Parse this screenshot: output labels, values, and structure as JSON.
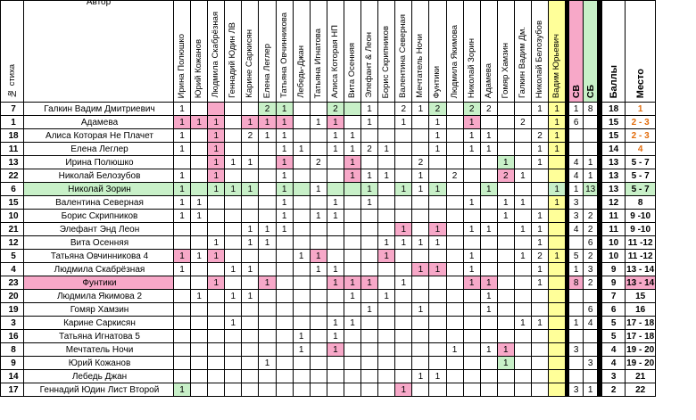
{
  "header": {
    "num_label": "№ стиха",
    "author_label": "Автор",
    "juries": [
      "Ирина Полюшко",
      "Юрий Кожанов",
      "Людмила Скабрёзная",
      "Геннадий Юдин ЛВ",
      "Карине Саркисян",
      "Елена Леглер",
      "Татьяна Овчинникова",
      "Лебедь-Джан",
      "Татьяна Игнатова",
      "Алиса Которая НП",
      "Вита Осенняя",
      "Элефант & Леон",
      "Борис Скрипников",
      "Валентина Северная",
      "Мечтатель Ночи",
      "Фунтики",
      "Людмила Якимова",
      "Николай Зорин",
      "Адамева",
      "Гомяр Хамзин",
      "Галкин Вадим Дм.",
      "Николай Белозубов",
      "Вадим Юрьевич"
    ],
    "sv_label": "СВ",
    "sb_label": "СБ",
    "sum_label": "Баллы",
    "place_label": "Место"
  },
  "rows": [
    {
      "num": "7",
      "author": "Галкин Вадим Дмитриевич",
      "votes": [
        "1",
        "",
        "",
        "",
        "",
        "2",
        "1",
        "",
        "",
        "2",
        "",
        "1",
        "",
        "2",
        "1",
        "2",
        "",
        "2",
        "2",
        "",
        "",
        "1",
        "1"
      ],
      "hl": [
        0,
        0,
        1,
        0,
        0,
        2,
        2,
        0,
        0,
        2,
        2,
        0,
        0,
        0,
        0,
        2,
        0,
        2,
        0,
        0,
        0,
        0,
        0
      ],
      "sv": "1",
      "sb": "8",
      "sum": "18",
      "place": "1",
      "orange": true
    },
    {
      "num": "1",
      "author": "Адамева",
      "votes": [
        "1",
        "1",
        "1",
        "",
        "1",
        "1",
        "1",
        "",
        "1",
        "1",
        "",
        "1",
        "",
        "1",
        "",
        "1",
        "",
        "1",
        "",
        "",
        "2",
        "",
        "1"
      ],
      "hl": [
        1,
        1,
        1,
        0,
        1,
        1,
        1,
        0,
        0,
        1,
        0,
        0,
        0,
        0,
        0,
        0,
        0,
        1,
        0,
        0,
        0,
        0,
        0
      ],
      "sv": "6",
      "sb": "",
      "sum": "15",
      "place": "2 - 3",
      "orange": true
    },
    {
      "num": "18",
      "author": "Алиса Которая Не Плачет",
      "votes": [
        "1",
        "",
        "1",
        "",
        "2",
        "1",
        "1",
        "",
        "",
        "1",
        "1",
        "",
        "",
        "",
        "",
        "1",
        "",
        "1",
        "1",
        "",
        "",
        "2",
        "1"
      ],
      "hl": [
        0,
        0,
        1,
        0,
        0,
        0,
        0,
        0,
        0,
        0,
        0,
        0,
        0,
        0,
        0,
        0,
        0,
        0,
        0,
        0,
        0,
        0,
        0
      ],
      "sv": "",
      "sb": "",
      "sum": "15",
      "place": "2 - 3",
      "orange": true
    },
    {
      "num": "11",
      "author": "Елена Леглер",
      "votes": [
        "1",
        "",
        "1",
        "",
        "",
        "",
        "1",
        "1",
        "",
        "1",
        "1",
        "2",
        "1",
        "",
        "",
        "1",
        "",
        "1",
        "1",
        "",
        "",
        "1",
        "1"
      ],
      "hl": [
        0,
        0,
        1,
        0,
        0,
        0,
        0,
        0,
        0,
        0,
        0,
        0,
        0,
        0,
        0,
        0,
        0,
        0,
        0,
        0,
        0,
        0,
        0
      ],
      "sv": "",
      "sb": "",
      "sum": "14",
      "place": "4",
      "orange": true
    },
    {
      "num": "13",
      "author": "Ирина Полюшко",
      "votes": [
        "",
        "",
        "1",
        "1",
        "1",
        "",
        "1",
        "",
        "2",
        "",
        "1",
        "",
        "",
        "",
        "2",
        "",
        "",
        "",
        "",
        "1",
        "",
        "1",
        ""
      ],
      "hl": [
        0,
        0,
        1,
        0,
        0,
        0,
        1,
        0,
        0,
        0,
        1,
        0,
        0,
        0,
        0,
        0,
        0,
        0,
        0,
        2,
        0,
        0,
        0
      ],
      "sv": "4",
      "sb": "1",
      "sum": "13",
      "place": "5 - 7",
      "orange": false
    },
    {
      "num": "22",
      "author": "Николай Белозубов",
      "votes": [
        "1",
        "",
        "1",
        "",
        "",
        "",
        "1",
        "",
        "",
        "",
        "1",
        "1",
        "1",
        "",
        "1",
        "",
        "2",
        "",
        "",
        "2",
        "1",
        "",
        ""
      ],
      "hl": [
        0,
        0,
        1,
        0,
        0,
        0,
        0,
        0,
        0,
        0,
        1,
        0,
        0,
        0,
        0,
        0,
        0,
        0,
        0,
        1,
        0,
        0,
        0
      ],
      "sv": "4",
      "sb": "1",
      "sum": "13",
      "place": "5 - 7",
      "orange": false
    },
    {
      "num": "6",
      "author": "Николай Зорин",
      "votes": [
        "1",
        "",
        "1",
        "1",
        "1",
        "",
        "1",
        "",
        "1",
        "",
        "",
        "1",
        "",
        "1",
        "1",
        "1",
        "",
        "",
        "1",
        "",
        "",
        "",
        "1"
      ],
      "hl": [
        2,
        2,
        2,
        2,
        2,
        0,
        2,
        2,
        0,
        2,
        2,
        2,
        0,
        2,
        0,
        2,
        0,
        0,
        2,
        0,
        0,
        0,
        2
      ],
      "sv": "1",
      "sb": "13",
      "sum": "13",
      "place": "5 - 7",
      "orange": false,
      "rowhl": "green"
    },
    {
      "num": "15",
      "author": "Валентина Северная",
      "votes": [
        "1",
        "1",
        "",
        "",
        "",
        "",
        "1",
        "",
        "",
        "1",
        "",
        "1",
        "",
        "",
        "",
        "",
        "",
        "1",
        "",
        "1",
        "1",
        "",
        "1"
      ],
      "hl": [
        0,
        0,
        0,
        0,
        0,
        0,
        0,
        0,
        0,
        0,
        0,
        0,
        0,
        0,
        0,
        0,
        0,
        0,
        0,
        0,
        0,
        0,
        0
      ],
      "sv": "3",
      "sb": "",
      "sum": "12",
      "place": "8",
      "orange": false
    },
    {
      "num": "10",
      "author": "Борис Скрипников",
      "votes": [
        "1",
        "1",
        "",
        "",
        "",
        "",
        "1",
        "",
        "1",
        "1",
        "",
        "",
        "",
        "",
        "",
        "",
        "",
        "",
        "",
        "1",
        "",
        "1",
        ""
      ],
      "hl": [
        0,
        0,
        0,
        0,
        0,
        0,
        0,
        0,
        0,
        0,
        0,
        0,
        0,
        0,
        0,
        0,
        0,
        0,
        0,
        0,
        0,
        0,
        0
      ],
      "sv": "3",
      "sb": "2",
      "sum": "11",
      "place": "9 -10",
      "orange": false
    },
    {
      "num": "21",
      "author": "Элефант Энд Леон",
      "votes": [
        "",
        "",
        "",
        "",
        "1",
        "1",
        "1",
        "",
        "",
        "",
        "",
        "",
        "",
        "1",
        "",
        "1",
        "",
        "1",
        "1",
        "",
        "1",
        "1",
        ""
      ],
      "hl": [
        0,
        0,
        0,
        0,
        0,
        0,
        0,
        0,
        0,
        0,
        0,
        0,
        0,
        1,
        0,
        1,
        0,
        0,
        0,
        0,
        0,
        0,
        0
      ],
      "sv": "4",
      "sb": "2",
      "sum": "11",
      "place": "9 -10",
      "orange": false
    },
    {
      "num": "12",
      "author": "Вита Осенняя",
      "votes": [
        "",
        "",
        "1",
        "",
        "1",
        "1",
        "",
        "",
        "",
        "",
        "",
        "",
        "1",
        "1",
        "1",
        "1",
        "",
        "",
        "",
        "",
        "",
        "1",
        ""
      ],
      "hl": [
        0,
        0,
        0,
        0,
        0,
        0,
        0,
        0,
        0,
        0,
        0,
        0,
        0,
        0,
        0,
        0,
        0,
        0,
        0,
        0,
        0,
        0,
        0
      ],
      "sv": "",
      "sb": "6",
      "sum": "10",
      "place": "11 -12",
      "orange": false
    },
    {
      "num": "5",
      "author": "Татьяна Овчинникова 4",
      "votes": [
        "1",
        "1",
        "1",
        "",
        "",
        "",
        "",
        "1",
        "1",
        "",
        "",
        "",
        "1",
        "",
        "",
        "",
        "",
        "1",
        "",
        "",
        "1",
        "2",
        "1"
      ],
      "hl": [
        1,
        0,
        1,
        0,
        0,
        0,
        0,
        0,
        1,
        0,
        0,
        0,
        1,
        0,
        0,
        0,
        0,
        0,
        0,
        0,
        0,
        0,
        0
      ],
      "sv": "5",
      "sb": "2",
      "sum": "10",
      "place": "11 -12",
      "orange": false
    },
    {
      "num": "4",
      "author": "Людмила Скабрёзная",
      "votes": [
        "1",
        "",
        "",
        "1",
        "1",
        "",
        "",
        "",
        "1",
        "1",
        "",
        "",
        "",
        "",
        "1",
        "1",
        "",
        "1",
        "",
        "",
        "",
        "1",
        ""
      ],
      "hl": [
        0,
        0,
        0,
        0,
        0,
        0,
        0,
        0,
        0,
        0,
        0,
        0,
        0,
        0,
        1,
        1,
        0,
        0,
        0,
        0,
        0,
        0,
        0
      ],
      "sv": "1",
      "sb": "3",
      "sum": "9",
      "place": "13 - 14",
      "orange": false
    },
    {
      "num": "23",
      "author": "Фунтики",
      "votes": [
        "",
        "",
        "1",
        "",
        "",
        "1",
        "",
        "",
        "",
        "1",
        "1",
        "1",
        "",
        "1",
        "",
        "",
        "",
        "1",
        "1",
        "",
        "",
        "1",
        ""
      ],
      "hl": [
        0,
        0,
        1,
        0,
        0,
        1,
        0,
        0,
        0,
        1,
        1,
        1,
        0,
        0,
        0,
        0,
        0,
        1,
        1,
        0,
        0,
        0,
        0
      ],
      "sv": "8",
      "sb": "2",
      "sum": "9",
      "place": "13 - 14",
      "orange": false,
      "rowhl": "pink"
    },
    {
      "num": "20",
      "author": "Людмила Якимова 2",
      "votes": [
        "",
        "1",
        "",
        "1",
        "1",
        "",
        "",
        "",
        "",
        "",
        "1",
        "",
        "1",
        "",
        "",
        "",
        "",
        "",
        "1",
        "",
        "",
        "",
        ""
      ],
      "hl": [
        0,
        0,
        0,
        0,
        0,
        0,
        0,
        0,
        0,
        0,
        0,
        0,
        0,
        0,
        0,
        0,
        0,
        0,
        0,
        0,
        0,
        0,
        0
      ],
      "sv": "",
      "sb": "",
      "sum": "7",
      "place": "15",
      "orange": false
    },
    {
      "num": "19",
      "author": "Гомяр Хамзин",
      "votes": [
        "",
        "",
        "",
        "",
        "",
        "",
        "",
        "",
        "",
        "",
        "",
        "1",
        "",
        "",
        "1",
        "",
        "",
        "",
        "1",
        "",
        "",
        "",
        ""
      ],
      "hl": [
        0,
        0,
        0,
        0,
        0,
        0,
        0,
        0,
        0,
        0,
        0,
        0,
        0,
        0,
        0,
        0,
        0,
        0,
        0,
        0,
        0,
        0,
        0
      ],
      "sv": "",
      "sb": "6",
      "sum": "6",
      "place": "16",
      "orange": false
    },
    {
      "num": "3",
      "author": "Карине Саркисян",
      "votes": [
        "",
        "",
        "",
        "1",
        "",
        "",
        "",
        "",
        "",
        "1",
        "1",
        "",
        "",
        "",
        "",
        "",
        "",
        "",
        "",
        "",
        "1",
        "1",
        ""
      ],
      "hl": [
        0,
        0,
        0,
        0,
        0,
        0,
        0,
        0,
        0,
        0,
        0,
        0,
        0,
        0,
        0,
        0,
        0,
        0,
        0,
        0,
        0,
        0,
        0
      ],
      "sv": "1",
      "sb": "4",
      "sum": "5",
      "place": "17 - 18",
      "orange": false
    },
    {
      "num": "16",
      "author": "Татьяна Игнатова 5",
      "votes": [
        "",
        "",
        "",
        "",
        "",
        "",
        "",
        "1",
        "",
        "1",
        "",
        "",
        "",
        "",
        "",
        "",
        "",
        "",
        "",
        "",
        "",
        "",
        ""
      ],
      "hl": [
        0,
        0,
        0,
        0,
        0,
        0,
        0,
        0,
        0,
        0,
        0,
        0,
        0,
        0,
        0,
        0,
        0,
        0,
        0,
        0,
        0,
        0,
        0
      ],
      "sv": "",
      "sb": "",
      "sum": "5",
      "place": "17 - 18",
      "orange": false
    },
    {
      "num": "8",
      "author": "Мечтатель Ночи",
      "votes": [
        "",
        "",
        "",
        "",
        "",
        "",
        "",
        "1",
        "",
        "1",
        "",
        "",
        "",
        "",
        "",
        "",
        "1",
        "",
        "1",
        "1",
        "",
        "",
        ""
      ],
      "hl": [
        0,
        0,
        0,
        0,
        0,
        0,
        0,
        0,
        0,
        1,
        0,
        0,
        0,
        0,
        0,
        0,
        0,
        0,
        0,
        1,
        0,
        0,
        0
      ],
      "sv": "3",
      "sb": "",
      "sum": "4",
      "place": "19 - 20",
      "orange": false
    },
    {
      "num": "9",
      "author": "Юрий Кожанов",
      "votes": [
        "",
        "",
        "",
        "",
        "",
        "1",
        "",
        "",
        "",
        "",
        "",
        "",
        "",
        "",
        "",
        "",
        "",
        "",
        "",
        "1",
        "",
        "",
        ""
      ],
      "hl": [
        0,
        0,
        0,
        0,
        0,
        0,
        0,
        0,
        0,
        0,
        0,
        0,
        0,
        0,
        0,
        0,
        0,
        0,
        0,
        2,
        0,
        0,
        0
      ],
      "sv": "",
      "sb": "3",
      "sum": "4",
      "place": "19 - 20",
      "orange": false
    },
    {
      "num": "14",
      "author": "Лебедь Джан",
      "votes": [
        "",
        "",
        "",
        "",
        "",
        "",
        "",
        "",
        "",
        "",
        "",
        "",
        "",
        "",
        "1",
        "1",
        "",
        "",
        "",
        "",
        "",
        "",
        ""
      ],
      "hl": [
        0,
        0,
        0,
        0,
        0,
        0,
        0,
        0,
        0,
        0,
        0,
        0,
        0,
        0,
        0,
        0,
        0,
        0,
        0,
        0,
        0,
        0,
        0
      ],
      "sv": "",
      "sb": "",
      "sum": "3",
      "place": "21",
      "orange": false
    },
    {
      "num": "17",
      "author": "Геннадий Юдин Лист Второй",
      "votes": [
        "1",
        "",
        "",
        "",
        "",
        "",
        "",
        "",
        "",
        "",
        "",
        "",
        "",
        "1",
        "",
        "",
        "",
        "",
        "",
        "",
        "",
        "",
        ""
      ],
      "hl": [
        2,
        0,
        0,
        0,
        0,
        0,
        0,
        0,
        0,
        0,
        0,
        0,
        0,
        1,
        0,
        0,
        0,
        0,
        0,
        0,
        0,
        0,
        0
      ],
      "sv": "3",
      "sb": "1",
      "sum": "2",
      "place": "22",
      "orange": false
    }
  ]
}
